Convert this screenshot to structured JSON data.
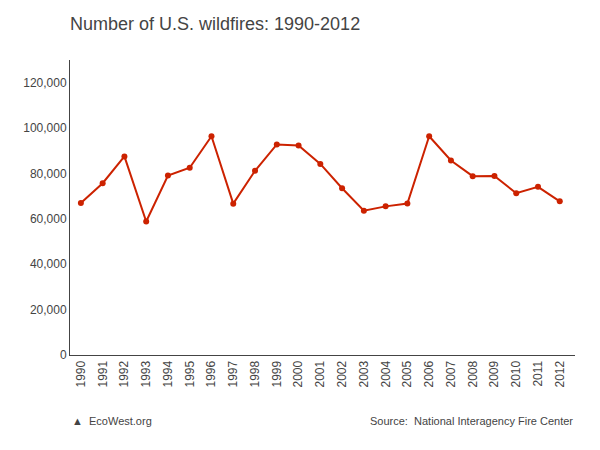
{
  "chart_data": {
    "type": "line",
    "title": "Number of U.S. wildfires: 1990-2012",
    "x": [
      1990,
      1991,
      1992,
      1993,
      1994,
      1995,
      1996,
      1997,
      1998,
      1999,
      2000,
      2001,
      2002,
      2003,
      2004,
      2005,
      2006,
      2007,
      2008,
      2009,
      2010,
      2011,
      2012
    ],
    "values": [
      66950,
      75700,
      87500,
      58810,
      79100,
      82500,
      96400,
      66700,
      81200,
      92800,
      92300,
      84200,
      73500,
      63600,
      65500,
      66750,
      96400,
      85700,
      78800,
      78900,
      71300,
      74100,
      67700
    ],
    "color": "#cc2200",
    "marker": "circle",
    "line_style": "solid",
    "xlim": [
      1989.5,
      2012.7
    ],
    "xticks": [
      1990,
      1991,
      1992,
      1993,
      1994,
      1995,
      1996,
      1997,
      1998,
      1999,
      2000,
      2001,
      2002,
      2003,
      2004,
      2005,
      2006,
      2007,
      2008,
      2009,
      2010,
      2011,
      2012
    ],
    "ylim": [
      0,
      130000
    ],
    "yticks": [
      0,
      {
        "value": 20000,
        "label": "20,000"
      },
      {
        "value": 40000,
        "label": "40,000"
      },
      {
        "value": 60000,
        "label": "60,000"
      },
      {
        "value": 80000,
        "label": "80,000"
      },
      {
        "value": 100000,
        "label": "100,000"
      },
      {
        "value": 120000,
        "label": "120,000"
      }
    ],
    "grid": false,
    "annotations": [
      "▲  EcoWest.org",
      "Source:  National Interagency Fire Center"
    ]
  }
}
